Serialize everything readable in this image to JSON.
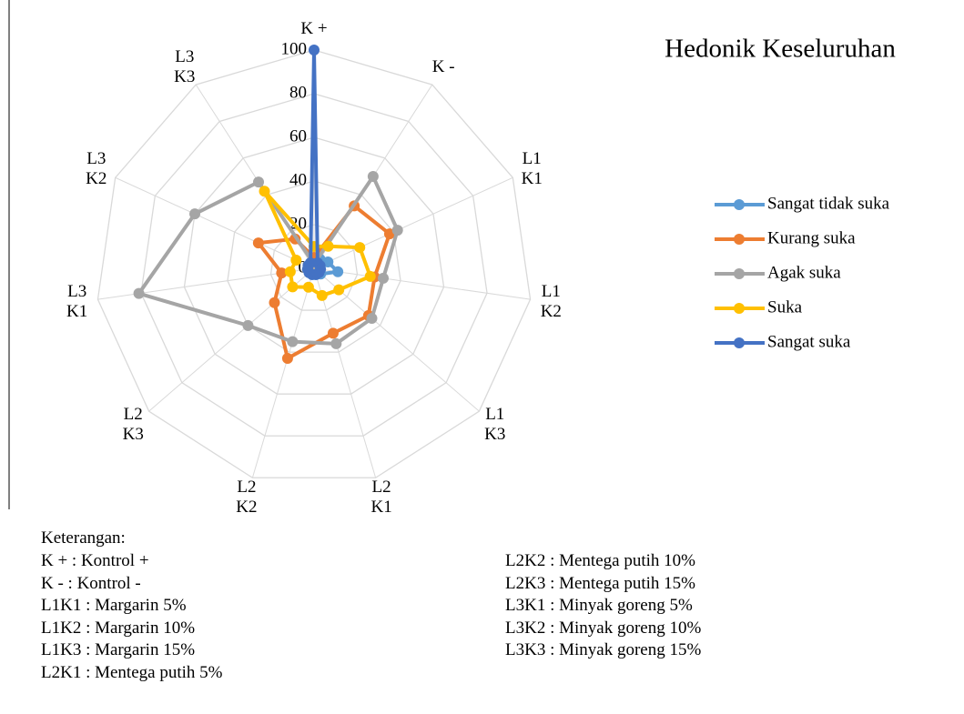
{
  "chart_data": {
    "type": "radar",
    "title": "Hedonik Keseluruhan",
    "categories": [
      "K +",
      "K -",
      "L1\nK1",
      "L1\nK2",
      "L1\nK3",
      "L2\nK1",
      "L2\nK2",
      "L2\nK3",
      "L3\nK1",
      "L3\nK2",
      "L3\nK3"
    ],
    "series": [
      {
        "name": "Sangat tidak suka",
        "color": "#5b9bd5",
        "values": [
          3,
          5,
          7,
          11,
          4,
          3,
          3,
          3,
          3,
          3,
          3
        ]
      },
      {
        "name": "Kurang suka",
        "color": "#ed7d31",
        "values": [
          5,
          34,
          38,
          28,
          33,
          31,
          43,
          24,
          15,
          28,
          16
        ]
      },
      {
        "name": "Agak suka",
        "color": "#a5a5a5",
        "values": [
          2,
          50,
          42,
          32,
          35,
          36,
          35,
          40,
          81,
          60,
          47
        ]
      },
      {
        "name": "Suka",
        "color": "#ffc000",
        "values": [
          10,
          12,
          23,
          26,
          15,
          13,
          9,
          13,
          11,
          9,
          42
        ]
      },
      {
        "name": "Sangat suka",
        "color": "#4472c4",
        "values": [
          100,
          3,
          3,
          3,
          3,
          3,
          3,
          3,
          3,
          3,
          3
        ]
      }
    ],
    "ylim": [
      0,
      100
    ],
    "yticks": [
      0,
      20,
      40,
      60,
      80,
      100
    ],
    "grid": true,
    "legend": "right"
  },
  "notes": {
    "heading": "Keterangan:",
    "left": [
      "K + : Kontrol +",
      "K - : Kontrol -",
      "L1K1 : Margarin 5%",
      "L1K2 : Margarin 10%",
      "L1K3 : Margarin 15%",
      "L2K1 : Mentega putih 5%"
    ],
    "right": [
      "L2K2 : Mentega putih 10%",
      "L2K3 : Mentega putih 15%",
      "L3K1 : Minyak goreng 5%",
      "L3K2 : Minyak goreng 10%",
      "L3K3 : Minyak goreng 15%"
    ]
  }
}
